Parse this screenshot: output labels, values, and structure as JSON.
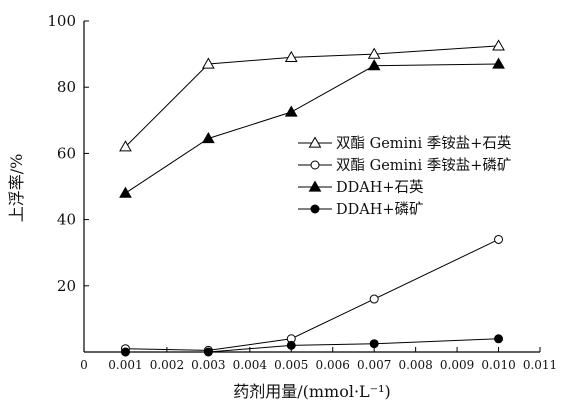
{
  "chart_data": {
    "type": "line",
    "xlabel": "药剂用量/(mmol·L⁻¹)",
    "ylabel": "上浮率/%",
    "xlim": [
      0,
      0.011
    ],
    "ylim": [
      0,
      100
    ],
    "x_ticks": [
      "0",
      "0.001",
      "0.002",
      "0.003",
      "0.004",
      "0.005",
      "0.006",
      "0.007",
      "0.008",
      "0.009",
      "0.010",
      "0.011"
    ],
    "y_ticks": [
      "0",
      "20",
      "40",
      "60",
      "80",
      "100"
    ],
    "grid": false,
    "legend_position": "right",
    "series": [
      {
        "name": "双酯 Gemini 季铵盐+石英",
        "marker": "triangle-open",
        "x": [
          0.001,
          0.003,
          0.005,
          0.007,
          0.01
        ],
        "values": [
          62,
          87,
          89,
          90,
          92.5
        ]
      },
      {
        "name": "双酯 Gemini 季铵盐+磷矿",
        "marker": "circle-open",
        "x": [
          0.001,
          0.003,
          0.005,
          0.007,
          0.01
        ],
        "values": [
          1,
          0.5,
          4,
          16,
          34
        ]
      },
      {
        "name": "DDAH+石英",
        "marker": "triangle-filled",
        "x": [
          0.001,
          0.003,
          0.005,
          0.007,
          0.01
        ],
        "values": [
          48,
          64.5,
          72.5,
          86.5,
          87
        ]
      },
      {
        "name": "DDAH+磷矿",
        "marker": "circle-filled",
        "x": [
          0.001,
          0.003,
          0.005,
          0.007,
          0.01
        ],
        "values": [
          0,
          0,
          2,
          2.5,
          4
        ]
      }
    ]
  }
}
